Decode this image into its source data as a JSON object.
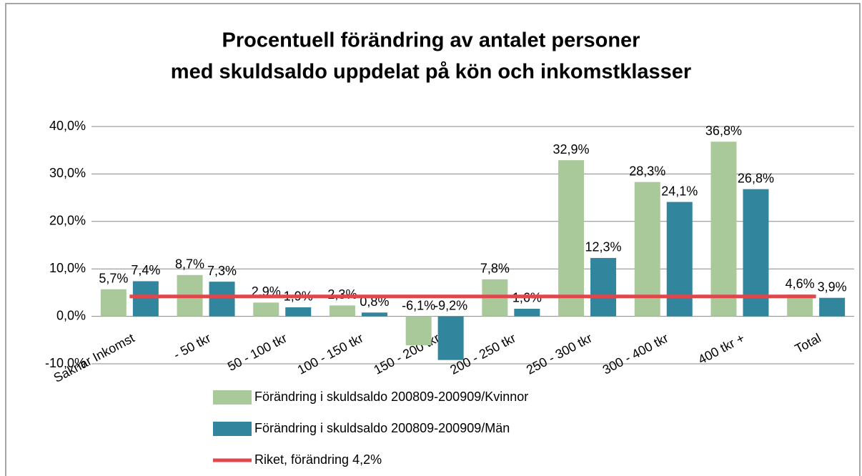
{
  "chart_data": {
    "type": "bar",
    "title": [
      "Procentuell förändring av antalet personer",
      "med skuldsaldo uppdelat på kön och inkomstklasser"
    ],
    "categories": [
      "Saknar Inkomst",
      "- 50 tkr",
      "50 - 100 tkr",
      "100 - 150 tkr",
      "150 - 200 tkr",
      "200 - 250 tkr",
      "250 - 300 tkr",
      "300 - 400 tkr",
      "400 tkr +",
      "Total"
    ],
    "series": [
      {
        "name": "Förändring i skuldsaldo 200809-200909/Kvinnor",
        "type": "bar",
        "color": "#a9c99a",
        "values": [
          5.7,
          8.7,
          2.9,
          2.3,
          -6.1,
          7.8,
          32.9,
          28.3,
          36.8,
          4.6
        ],
        "value_labels": [
          "5,7%",
          "8,7%",
          "2,9%",
          "2,3%",
          "-6,1%",
          "7,8%",
          "32,9%",
          "28,3%",
          "36,8%",
          "4,6%"
        ]
      },
      {
        "name": "Förändring i skuldsaldo 200809-200909/Män",
        "type": "bar",
        "color": "#31859c",
        "values": [
          7.4,
          7.3,
          1.9,
          0.8,
          -9.2,
          1.6,
          12.3,
          24.1,
          26.8,
          3.9
        ],
        "value_labels": [
          "7,4%",
          "7,3%",
          "1,9%",
          "0,8%",
          "-9,2%",
          "1,6%",
          "12,3%",
          "24,1%",
          "26,8%",
          "3,9%"
        ]
      },
      {
        "name": "Riket, förändring 4,2%",
        "type": "line",
        "color": "#e0474c",
        "values": [
          4.2,
          4.2,
          4.2,
          4.2,
          4.2,
          4.2,
          4.2,
          4.2,
          4.2,
          4.2
        ]
      }
    ],
    "ylim": [
      -10,
      40
    ],
    "yticks": [
      {
        "value": -10,
        "label": "-10,0%"
      },
      {
        "value": 0,
        "label": "0,0%"
      },
      {
        "value": 10,
        "label": "10,0%"
      },
      {
        "value": 20,
        "label": "20,0%"
      },
      {
        "value": 30,
        "label": "30,0%"
      },
      {
        "value": 40,
        "label": "40,0%"
      }
    ],
    "grid": true,
    "legend": "bottom"
  }
}
